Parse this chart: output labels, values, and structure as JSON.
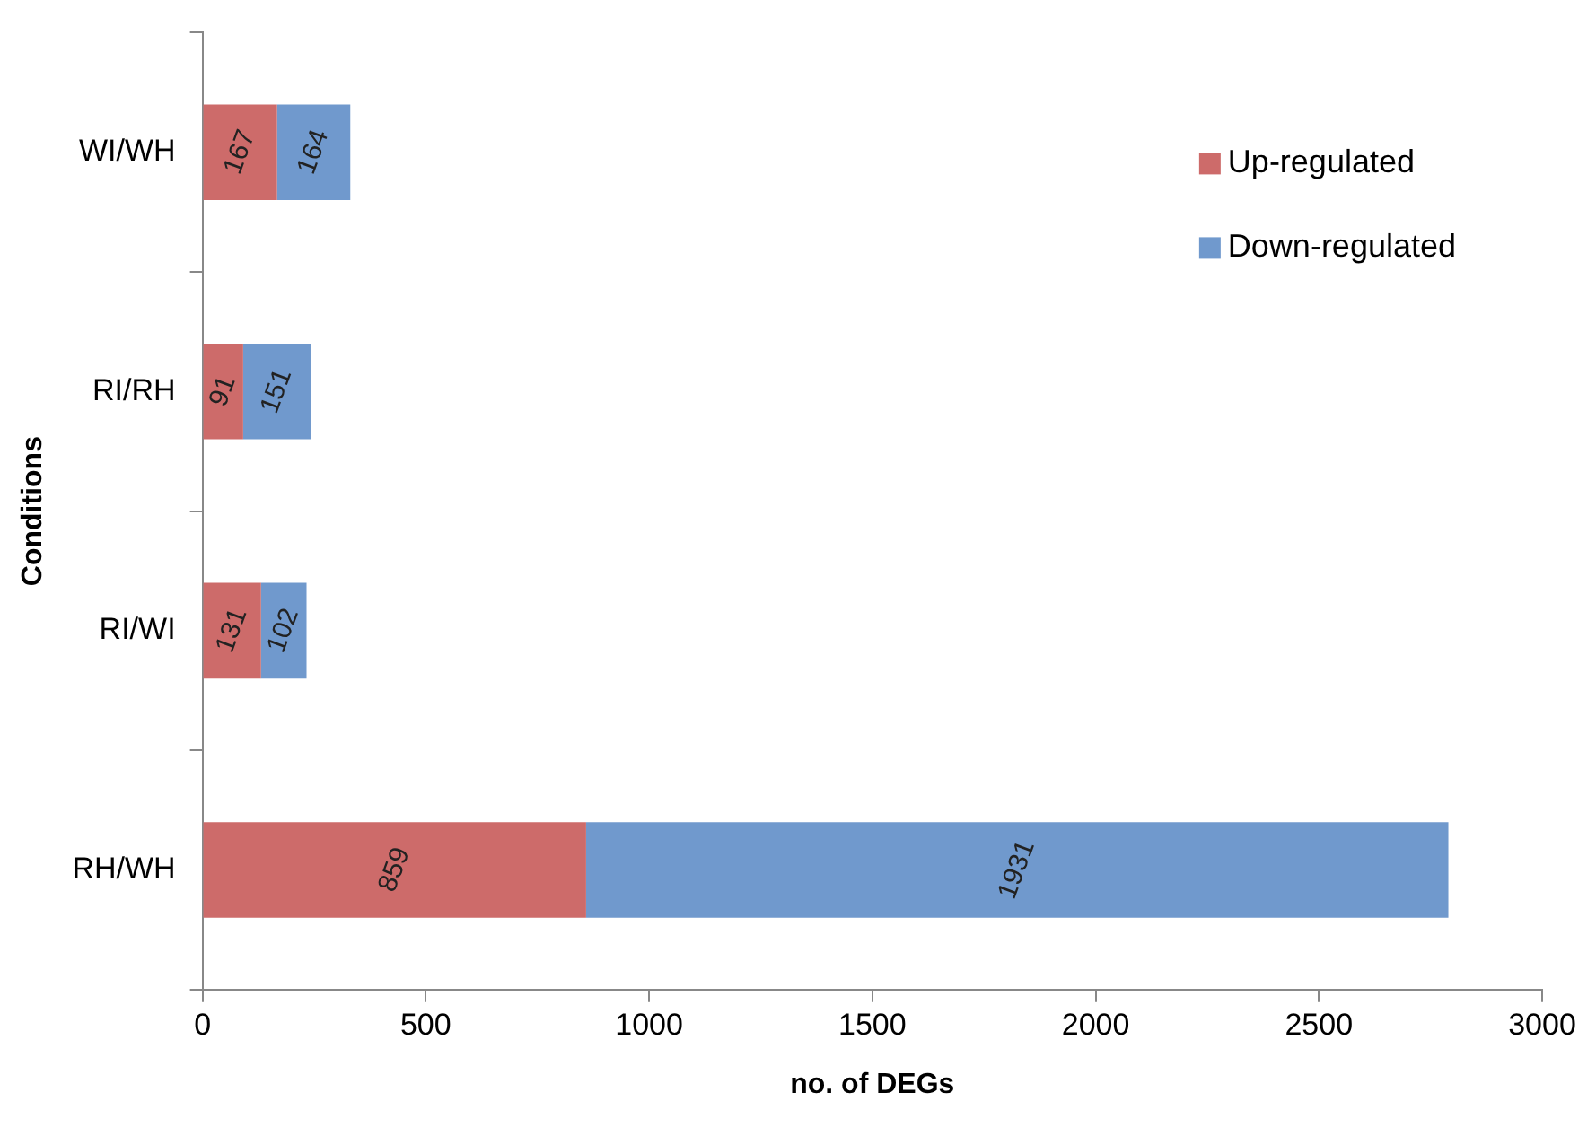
{
  "chart_data": {
    "type": "bar",
    "orientation": "horizontal",
    "stacked": true,
    "categories": [
      "WI/WH",
      "RI/RH",
      "RI/WI",
      "RH/WH"
    ],
    "series": [
      {
        "name": "Up-regulated",
        "color": "#cd6b6a",
        "values": [
          167,
          91,
          131,
          859
        ]
      },
      {
        "name": "Down-regulated",
        "color": "#7099cd",
        "values": [
          164,
          151,
          102,
          1931
        ]
      }
    ],
    "xlim": [
      0,
      3000
    ],
    "xticks": [
      0,
      500,
      1000,
      1500,
      2000,
      2500,
      3000
    ],
    "xlabel": "no. of DEGs",
    "ylabel": "Conditions",
    "grid": false,
    "legend": "top right",
    "data_labels": true
  }
}
